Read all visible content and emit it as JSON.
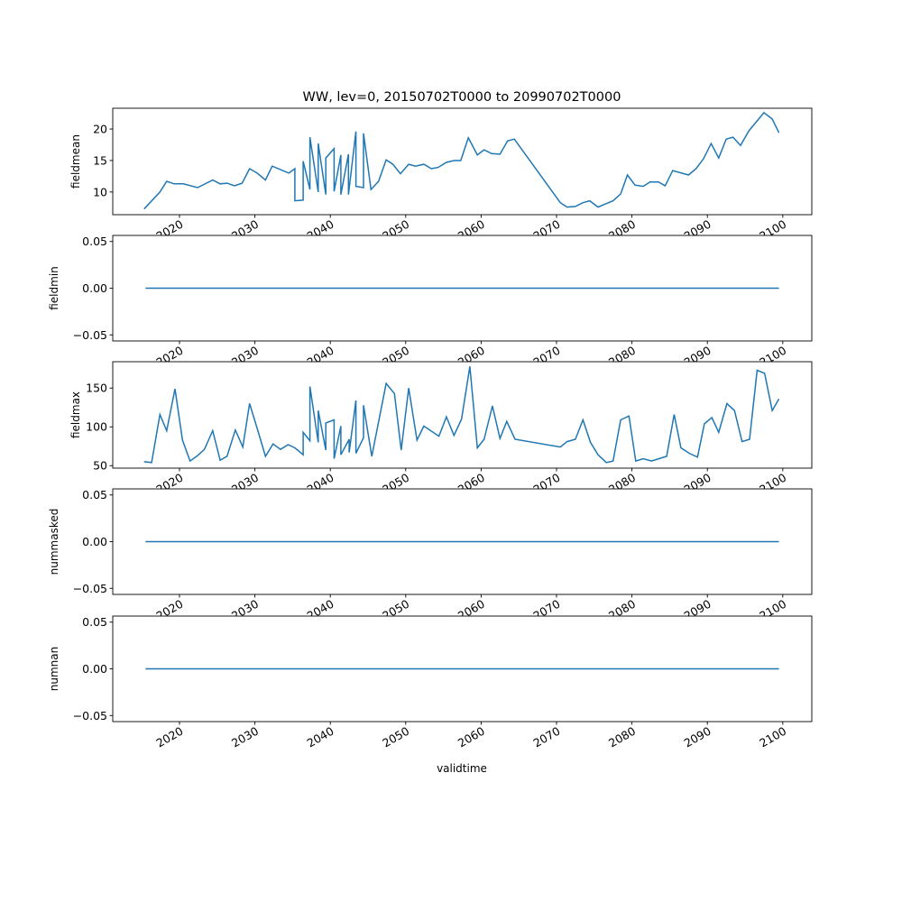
{
  "chart_data": {
    "type": "line",
    "title": "WW, lev=0, 20150702T0000 to 20990702T0000",
    "xlabel": "validtime",
    "xlim": [
      2011.15,
      2103.85
    ],
    "xticks": [
      2020,
      2030,
      2040,
      2050,
      2060,
      2070,
      2080,
      2090,
      2100
    ],
    "xtick_labels": [
      "2020",
      "2030",
      "2040",
      "2050",
      "2060",
      "2070",
      "2080",
      "2090",
      "2100"
    ],
    "line_color": "#1f77b4",
    "panels": [
      {
        "ylabel": "fieldmean",
        "ylim": [
          6.4,
          23.3
        ],
        "yticks": [
          10,
          15,
          20
        ],
        "ytick_labels": [
          "10",
          "15",
          "20"
        ],
        "x": [
          2015.3,
          2017.4,
          2018.3,
          2019.3,
          2020.5,
          2022.4,
          2024.4,
          2025.4,
          2026.3,
          2027.3,
          2028.3,
          2029.3,
          2030.3,
          2031.4,
          2032.3,
          2034.5,
          2035.3,
          2035.3,
          2036.4,
          2036.4,
          2037.3,
          2037.3,
          2038.4,
          2038.4,
          2039.4,
          2039.4,
          2040.5,
          2040.5,
          2041.4,
          2041.4,
          2042.4,
          2042.4,
          2043.4,
          2043.4,
          2044.4,
          2044.4,
          2045.4,
          2046.4,
          2047.4,
          2048.3,
          2049.3,
          2050.4,
          2051.3,
          2052.4,
          2053.4,
          2054.3,
          2055.4,
          2056.4,
          2057.3,
          2058.3,
          2059.5,
          2060.4,
          2061.4,
          2062.5,
          2063.5,
          2064.4,
          2070.5,
          2071.4,
          2072.5,
          2073.5,
          2074.4,
          2075.5,
          2076.5,
          2077.5,
          2078.5,
          2079.4,
          2080.4,
          2081.5,
          2082.4,
          2083.5,
          2084.4,
          2085.4,
          2087.5,
          2088.5,
          2089.5,
          2090.5,
          2091.5,
          2092.5,
          2093.4,
          2094.4,
          2095.5,
          2097.5,
          2098.6,
          2099.5
        ],
        "y": [
          7.3,
          10,
          11.7,
          11.3,
          11.3,
          10.7,
          11.9,
          11.3,
          11.4,
          11,
          11.4,
          13.7,
          13,
          11.9,
          14.1,
          13,
          13.7,
          8.6,
          8.7,
          14.9,
          10.4,
          18.7,
          10,
          17.7,
          9.6,
          15.4,
          16.9,
          10.1,
          15.9,
          9.6,
          16,
          9.6,
          19.6,
          10.9,
          10.7,
          19.3,
          10.4,
          11.7,
          15.1,
          14.4,
          12.9,
          14.4,
          14.1,
          14.4,
          13.7,
          13.9,
          14.7,
          15,
          15,
          18.6,
          15.9,
          16.7,
          16.1,
          16,
          18.1,
          18.4,
          8.3,
          7.6,
          7.7,
          8.3,
          8.6,
          7.6,
          8.1,
          8.6,
          9.7,
          12.7,
          11.1,
          10.9,
          11.6,
          11.6,
          11,
          13.4,
          12.7,
          13.7,
          15.3,
          17.7,
          15.4,
          18.4,
          18.7,
          17.4,
          19.7,
          22.6,
          21.6,
          19.4
        ]
      },
      {
        "ylabel": "fieldmin",
        "ylim": [
          -0.0565,
          0.0565
        ],
        "yticks": [
          -0.05,
          0,
          0.05
        ],
        "ytick_labels": [
          "−0.05",
          "0.00",
          "0.05"
        ],
        "x": [
          2015.5,
          2099.5
        ],
        "y": [
          0,
          0
        ]
      },
      {
        "ylabel": "fieldmax",
        "ylim": [
          46.8,
          184
        ],
        "yticks": [
          50,
          100,
          150
        ],
        "ytick_labels": [
          "50",
          "100",
          "150"
        ],
        "x": [
          2015.3,
          2016.3,
          2017.4,
          2018.3,
          2019.4,
          2020.4,
          2021.4,
          2022.4,
          2023.3,
          2024.4,
          2025.4,
          2026.3,
          2027.4,
          2028.4,
          2029.3,
          2030.4,
          2031.4,
          2032.4,
          2033.4,
          2034.4,
          2035.3,
          2036.4,
          2036.4,
          2037.3,
          2037.3,
          2038.4,
          2038.4,
          2039.4,
          2039.4,
          2040.5,
          2040.5,
          2041.4,
          2041.4,
          2042.5,
          2042.5,
          2043.4,
          2043.4,
          2044.4,
          2044.4,
          2045.5,
          2047.4,
          2048.5,
          2049.4,
          2050.4,
          2051.5,
          2052.4,
          2054.4,
          2055.4,
          2056.4,
          2057.4,
          2058.5,
          2059.5,
          2060.4,
          2061.5,
          2062.5,
          2063.4,
          2064.5,
          2070.5,
          2071.4,
          2072.5,
          2073.5,
          2074.5,
          2075.5,
          2076.6,
          2077.5,
          2078.5,
          2079.6,
          2080.5,
          2081.5,
          2082.6,
          2083.6,
          2084.6,
          2085.6,
          2086.5,
          2087.6,
          2088.7,
          2089.6,
          2090.6,
          2091.5,
          2092.6,
          2093.6,
          2094.6,
          2095.6,
          2096.6,
          2097.6,
          2098.6,
          2099.5
        ],
        "y": [
          55,
          54,
          116,
          95,
          149,
          83,
          56,
          63,
          71,
          95,
          57,
          62,
          96,
          74,
          130,
          95,
          62,
          78,
          71,
          77,
          73,
          64,
          93,
          82,
          152,
          80,
          121,
          70,
          105,
          109,
          59,
          101,
          64,
          84,
          67,
          134,
          66,
          86,
          128,
          62,
          156,
          143,
          70,
          150,
          83,
          101,
          88,
          113,
          89,
          110,
          178,
          73,
          84,
          127,
          85,
          107,
          84,
          74,
          81,
          84,
          109,
          80,
          64,
          54,
          56,
          109,
          114,
          56,
          59,
          56,
          59,
          62,
          116,
          73,
          66,
          61,
          104,
          112,
          93,
          130,
          121,
          81,
          84,
          173,
          169,
          121,
          136
        ]
      },
      {
        "ylabel": "nummasked",
        "ylim": [
          -0.0565,
          0.0565
        ],
        "yticks": [
          -0.05,
          0,
          0.05
        ],
        "ytick_labels": [
          "−0.05",
          "0.00",
          "0.05"
        ],
        "x": [
          2015.5,
          2099.5
        ],
        "y": [
          0,
          0
        ]
      },
      {
        "ylabel": "numnan",
        "ylim": [
          -0.0565,
          0.0565
        ],
        "yticks": [
          -0.05,
          0,
          0.05
        ],
        "ytick_labels": [
          "−0.05",
          "0.00",
          "0.05"
        ],
        "x": [
          2015.5,
          2099.5
        ],
        "y": [
          0,
          0
        ]
      }
    ]
  }
}
